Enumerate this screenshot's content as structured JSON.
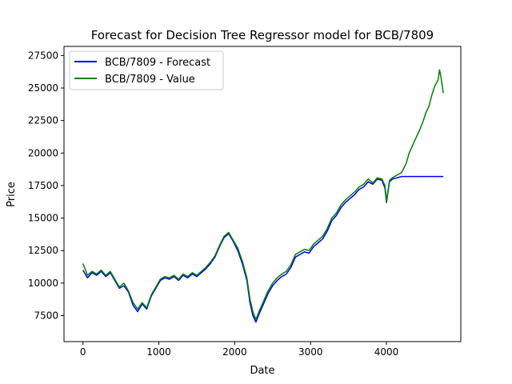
{
  "chart_data": {
    "type": "line",
    "title": "Forecast for Decision Tree Regressor model for BCB/7809",
    "xlabel": "Date",
    "ylabel": "Price",
    "xlim": [
      -250,
      4980
    ],
    "ylim": [
      5500,
      28200
    ],
    "xticks": [
      0,
      1000,
      2000,
      3000,
      4000
    ],
    "yticks": [
      7500,
      10000,
      12500,
      15000,
      17500,
      20000,
      22500,
      25000,
      27500
    ],
    "grid": false,
    "legend": {
      "placement": "top-left"
    },
    "series": [
      {
        "name": "BCB/7809 - Forecast",
        "color": "#0000ff",
        "x": [
          0,
          60,
          120,
          180,
          240,
          300,
          360,
          420,
          480,
          540,
          600,
          660,
          720,
          780,
          840,
          900,
          960,
          1020,
          1080,
          1140,
          1200,
          1260,
          1320,
          1380,
          1440,
          1500,
          1560,
          1620,
          1680,
          1740,
          1800,
          1860,
          1920,
          1980,
          2040,
          2100,
          2160,
          2200,
          2240,
          2280,
          2320,
          2380,
          2440,
          2500,
          2560,
          2620,
          2680,
          2740,
          2800,
          2860,
          2920,
          2980,
          3040,
          3100,
          3160,
          3220,
          3280,
          3340,
          3400,
          3460,
          3520,
          3580,
          3640,
          3700,
          3760,
          3820,
          3880,
          3940,
          3980,
          4000,
          4040,
          4080,
          4140,
          4200,
          4750
        ],
        "y": [
          11000,
          10400,
          10800,
          10600,
          10900,
          10500,
          10800,
          10200,
          9600,
          9800,
          9300,
          8300,
          7800,
          8400,
          8000,
          9000,
          9600,
          10200,
          10400,
          10300,
          10500,
          10200,
          10600,
          10400,
          10700,
          10500,
          10800,
          11100,
          11500,
          12000,
          12800,
          13500,
          13800,
          13200,
          12500,
          11500,
          10200,
          8500,
          7500,
          7000,
          7600,
          8400,
          9200,
          9800,
          10200,
          10500,
          10700,
          11200,
          12000,
          12200,
          12400,
          12300,
          12800,
          13100,
          13400,
          14000,
          14800,
          15200,
          15800,
          16200,
          16500,
          16800,
          17200,
          17400,
          17800,
          17600,
          18000,
          17900,
          17300,
          16200,
          17800,
          18000,
          18100,
          18200,
          18200
        ]
      },
      {
        "name": "BCB/7809 - Value",
        "color": "#008000",
        "x": [
          0,
          60,
          120,
          180,
          240,
          300,
          360,
          420,
          480,
          540,
          600,
          660,
          720,
          780,
          840,
          900,
          960,
          1020,
          1080,
          1140,
          1200,
          1260,
          1320,
          1380,
          1440,
          1500,
          1560,
          1620,
          1680,
          1740,
          1800,
          1860,
          1920,
          1980,
          2040,
          2100,
          2160,
          2200,
          2240,
          2280,
          2320,
          2380,
          2440,
          2500,
          2560,
          2620,
          2680,
          2740,
          2800,
          2860,
          2920,
          2980,
          3040,
          3100,
          3160,
          3220,
          3280,
          3340,
          3400,
          3460,
          3520,
          3580,
          3640,
          3700,
          3760,
          3820,
          3880,
          3940,
          3980,
          4000,
          4040,
          4080,
          4140,
          4200,
          4260,
          4300,
          4360,
          4400,
          4440,
          4480,
          4520,
          4560,
          4600,
          4640,
          4680,
          4700,
          4720,
          4750
        ],
        "y": [
          11500,
          10600,
          10900,
          10700,
          11000,
          10600,
          10900,
          10300,
          9700,
          10000,
          9400,
          8500,
          8000,
          8500,
          8100,
          9100,
          9700,
          10300,
          10500,
          10400,
          10600,
          10300,
          10700,
          10500,
          10800,
          10600,
          10900,
          11200,
          11600,
          12100,
          12900,
          13600,
          13900,
          13300,
          12700,
          11700,
          10400,
          8800,
          7800,
          7200,
          7800,
          8600,
          9400,
          10000,
          10400,
          10700,
          10900,
          11400,
          12200,
          12400,
          12600,
          12500,
          13000,
          13300,
          13600,
          14200,
          15000,
          15400,
          16000,
          16400,
          16700,
          17000,
          17400,
          17600,
          18000,
          17700,
          18100,
          18000,
          17500,
          16300,
          17900,
          18100,
          18300,
          18500,
          19200,
          20000,
          20800,
          21300,
          21800,
          22400,
          23100,
          23600,
          24500,
          25200,
          25600,
          26400,
          25800,
          24600
        ]
      }
    ]
  }
}
